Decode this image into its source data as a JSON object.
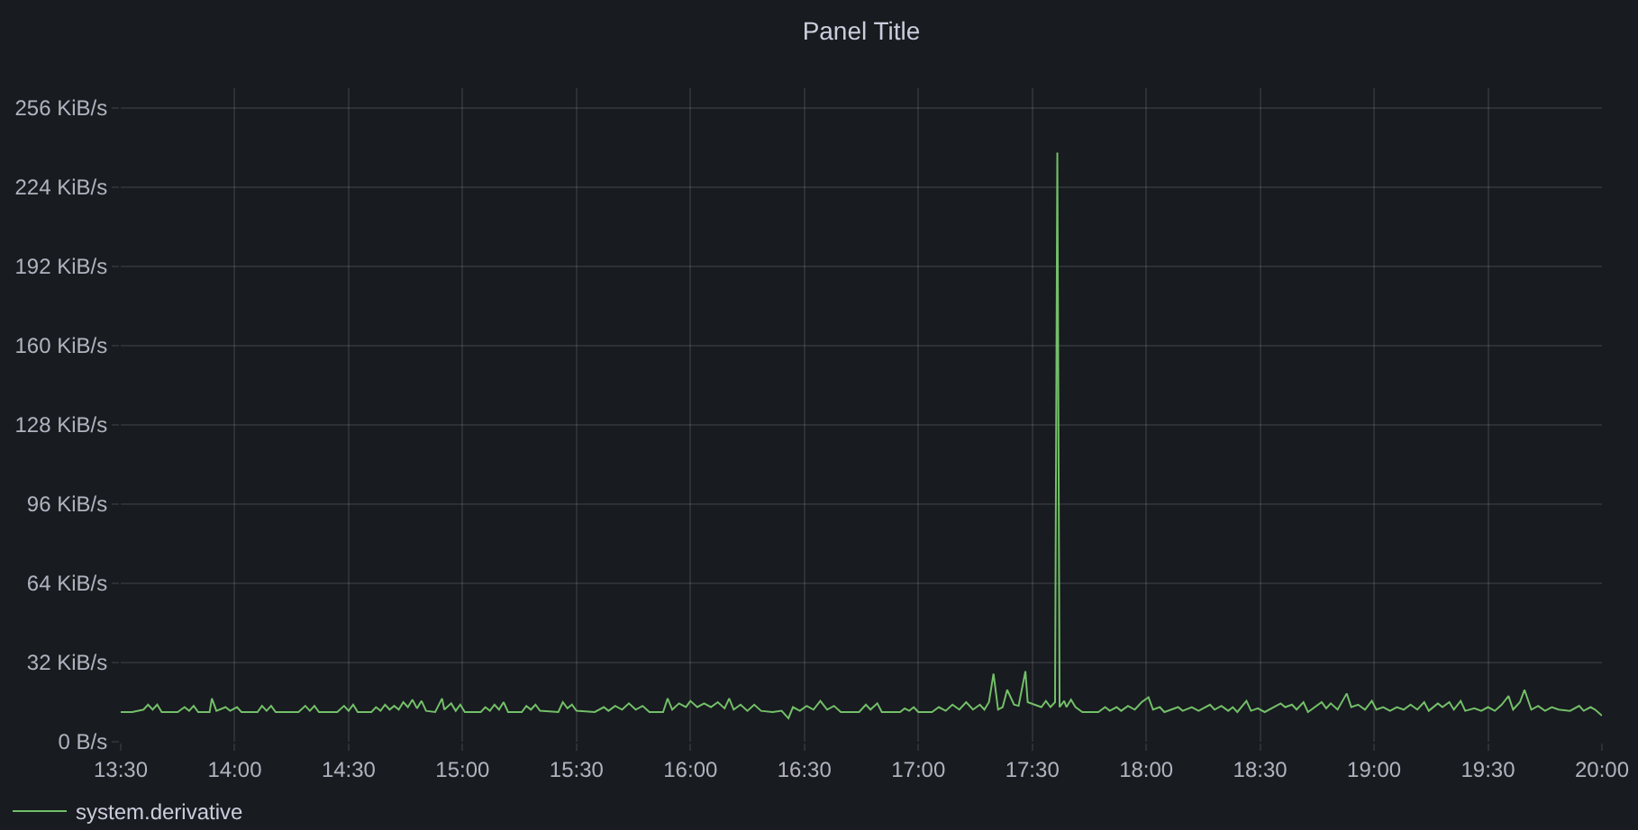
{
  "chart_data": {
    "type": "line",
    "title": "Panel Title",
    "x": [
      13.5,
      13.55,
      13.6,
      13.62,
      13.64,
      13.66,
      13.68,
      13.75,
      13.78,
      13.8,
      13.82,
      13.84,
      13.89,
      13.9,
      13.92,
      13.96,
      13.98,
      14.01,
      14.03,
      14.1,
      14.12,
      14.14,
      14.16,
      14.18,
      14.28,
      14.31,
      14.33,
      14.35,
      14.37,
      14.45,
      14.48,
      14.5,
      14.52,
      14.54,
      14.6,
      14.62,
      14.64,
      14.66,
      14.68,
      14.7,
      14.72,
      14.74,
      14.76,
      14.78,
      14.8,
      14.82,
      14.84,
      14.88,
      14.91,
      14.92,
      14.95,
      14.97,
      14.99,
      15.01,
      15.08,
      15.1,
      15.12,
      15.14,
      15.16,
      15.18,
      15.2,
      15.26,
      15.28,
      15.3,
      15.32,
      15.34,
      15.42,
      15.44,
      15.46,
      15.48,
      15.5,
      15.58,
      15.62,
      15.64,
      15.67,
      15.7,
      15.73,
      15.76,
      15.79,
      15.82,
      15.88,
      15.9,
      15.92,
      15.95,
      15.98,
      16.0,
      16.03,
      16.06,
      16.09,
      16.12,
      16.15,
      16.17,
      16.19,
      16.22,
      16.25,
      16.28,
      16.31,
      16.36,
      16.4,
      16.43,
      16.45,
      16.48,
      16.51,
      16.54,
      16.57,
      16.6,
      16.63,
      16.66,
      16.74,
      16.77,
      16.79,
      16.82,
      16.84,
      16.92,
      16.94,
      16.96,
      16.98,
      17.0,
      17.06,
      17.09,
      17.12,
      17.15,
      17.18,
      17.21,
      17.24,
      17.27,
      17.29,
      17.31,
      17.33,
      17.35,
      17.37,
      17.39,
      17.42,
      17.44,
      17.47,
      17.48,
      17.51,
      17.54,
      17.56,
      17.58,
      17.6,
      17.61,
      17.62,
      17.64,
      17.65,
      17.67,
      17.69,
      17.72,
      17.79,
      17.82,
      17.84,
      17.87,
      17.89,
      17.92,
      17.95,
      17.98,
      18.01,
      18.03,
      18.06,
      18.08,
      18.14,
      18.16,
      18.2,
      18.23,
      18.28,
      18.3,
      18.33,
      18.36,
      18.38,
      18.4,
      18.44,
      18.46,
      18.49,
      18.52,
      18.59,
      18.61,
      18.64,
      18.66,
      18.69,
      18.71,
      18.77,
      18.79,
      18.81,
      18.84,
      18.88,
      18.9,
      18.93,
      18.96,
      18.99,
      19.01,
      19.04,
      19.07,
      19.1,
      19.13,
      19.16,
      19.19,
      19.22,
      19.24,
      19.28,
      19.3,
      19.33,
      19.35,
      19.38,
      19.4,
      19.44,
      19.47,
      19.5,
      19.53,
      19.56,
      19.59,
      19.61,
      19.64,
      19.66,
      19.69,
      19.72,
      19.75,
      19.78,
      19.81,
      19.86,
      19.9,
      19.92,
      19.95,
      19.97,
      20.0
    ],
    "series": [
      {
        "name": "system.derivative",
        "color": "#73bf69",
        "values": [
          12,
          12,
          13,
          15,
          13,
          15,
          12,
          12,
          14,
          12.5,
          14.5,
          12,
          12,
          17.5,
          12.5,
          14,
          12.5,
          14,
          12,
          12,
          14.5,
          12.5,
          14.5,
          12,
          12,
          14.5,
          12.5,
          14.5,
          12,
          12,
          14.5,
          12.5,
          15,
          12,
          12,
          14,
          12.5,
          15,
          13,
          14.5,
          13,
          16,
          14,
          17,
          13.5,
          16.5,
          12.5,
          12,
          17.5,
          13,
          15.5,
          12.5,
          15,
          12,
          12,
          14,
          12.5,
          15,
          13,
          16,
          12,
          12,
          14.5,
          13,
          15,
          12.5,
          12,
          16,
          13.5,
          15,
          12.5,
          12,
          14,
          12.5,
          14.5,
          13,
          15.5,
          13,
          14.5,
          12,
          12,
          17.5,
          13,
          15.5,
          14,
          16.5,
          14,
          15.5,
          14,
          16,
          13.5,
          17.5,
          13,
          15,
          12.5,
          15,
          12.5,
          12,
          12.5,
          9.5,
          14,
          12.5,
          14.5,
          13,
          16.5,
          13,
          14.5,
          12,
          12,
          15,
          13,
          15.5,
          12,
          12,
          13.5,
          12.5,
          14,
          12,
          12,
          14,
          12.5,
          15,
          13,
          16,
          13,
          15,
          13,
          16,
          27.5,
          13,
          14,
          21,
          15,
          14.5,
          28.5,
          16,
          15,
          14,
          16.5,
          14,
          16,
          238,
          14,
          16.5,
          14,
          17,
          14,
          12,
          12,
          14,
          12.5,
          14,
          12.5,
          14.5,
          13,
          16,
          18,
          13,
          14,
          12,
          14,
          12.5,
          14,
          12.5,
          15,
          13,
          14.5,
          12.5,
          14,
          12,
          16.5,
          12.5,
          13.5,
          12,
          15.5,
          14,
          15,
          13,
          16,
          12,
          16,
          13.5,
          15.5,
          13,
          19.5,
          14,
          15,
          13,
          16.5,
          13,
          14,
          12.5,
          14,
          13,
          15,
          13,
          16,
          12.5,
          15.5,
          14,
          16,
          13,
          16.5,
          12.5,
          13.5,
          12.5,
          14,
          12.5,
          15,
          18.5,
          13,
          16,
          21,
          13,
          14.5,
          12.5,
          14,
          13,
          12.5,
          14.5,
          12.5,
          14,
          13,
          10.5
        ]
      }
    ],
    "xlim": [
      13.5,
      20
    ],
    "xticks": [
      {
        "value": 13.5,
        "label": "13:30"
      },
      {
        "value": 14,
        "label": "14:00"
      },
      {
        "value": 14.5,
        "label": "14:30"
      },
      {
        "value": 15,
        "label": "15:00"
      },
      {
        "value": 15.5,
        "label": "15:30"
      },
      {
        "value": 16,
        "label": "16:00"
      },
      {
        "value": 16.5,
        "label": "16:30"
      },
      {
        "value": 17,
        "label": "17:00"
      },
      {
        "value": 17.5,
        "label": "17:30"
      },
      {
        "value": 18,
        "label": "18:00"
      },
      {
        "value": 18.5,
        "label": "18:30"
      },
      {
        "value": 19,
        "label": "19:00"
      },
      {
        "value": 19.5,
        "label": "19:30"
      },
      {
        "value": 20,
        "label": "20:00"
      }
    ],
    "ylim": [
      0,
      264
    ],
    "yticks": [
      {
        "value": 0,
        "label": "0 B/s"
      },
      {
        "value": 32,
        "label": "32 KiB/s"
      },
      {
        "value": 64,
        "label": "64 KiB/s"
      },
      {
        "value": 96,
        "label": "96 KiB/s"
      },
      {
        "value": 128,
        "label": "128 KiB/s"
      },
      {
        "value": 160,
        "label": "160 KiB/s"
      },
      {
        "value": 192,
        "label": "192 KiB/s"
      },
      {
        "value": 224,
        "label": "224 KiB/s"
      },
      {
        "value": 256,
        "label": "256 KiB/s"
      }
    ],
    "grid": true,
    "legend": "bottom left",
    "line_style": "solid"
  }
}
